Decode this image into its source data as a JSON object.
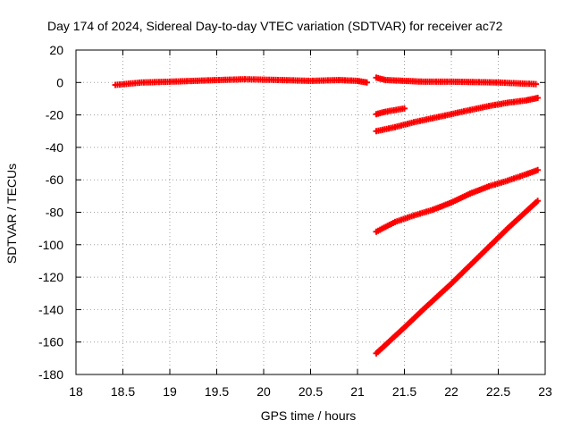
{
  "chart_data": {
    "type": "scatter",
    "title": "Day 174 of 2024, Sidereal Day-to-day VTEC variation (SDTVAR) for receiver ac72",
    "xlabel": "GPS time / hours",
    "ylabel": "SDTVAR / TECUs",
    "xlim": [
      18,
      23
    ],
    "ylim": [
      -180,
      20
    ],
    "xticks": [
      "18",
      "18.5",
      "19",
      "19.5",
      "20",
      "20.5",
      "21",
      "21.5",
      "22",
      "22.5",
      "23"
    ],
    "yticks": [
      "20",
      "0",
      "-20",
      "-40",
      "-60",
      "-80",
      "-100",
      "-120",
      "-140",
      "-160",
      "-180"
    ],
    "grid": true,
    "legend": "none",
    "marker": "plus",
    "color": "#ff0000",
    "series": [
      {
        "values": [
          [
            18.42,
            -1.5
          ],
          [
            18.7,
            0
          ],
          [
            19.0,
            0.5
          ],
          [
            19.5,
            1.5
          ],
          [
            19.8,
            2
          ],
          [
            20.2,
            1.5
          ],
          [
            20.5,
            1
          ],
          [
            20.8,
            1.5
          ],
          [
            21.0,
            1
          ],
          [
            21.1,
            0
          ]
        ]
      },
      {
        "values": [
          [
            21.2,
            3
          ],
          [
            21.3,
            1.5
          ],
          [
            21.5,
            1
          ],
          [
            21.7,
            0.5
          ],
          [
            22.0,
            0.5
          ],
          [
            22.5,
            0
          ],
          [
            22.9,
            -1
          ]
        ]
      },
      {
        "values": [
          [
            21.2,
            -19.5
          ],
          [
            21.3,
            -18
          ],
          [
            21.5,
            -16
          ]
        ]
      },
      {
        "values": [
          [
            21.2,
            -30
          ],
          [
            21.4,
            -27.5
          ],
          [
            21.6,
            -24.5
          ],
          [
            21.8,
            -22
          ],
          [
            22.0,
            -19.5
          ],
          [
            22.2,
            -17
          ],
          [
            22.4,
            -14.5
          ],
          [
            22.6,
            -12.5
          ],
          [
            22.8,
            -11
          ],
          [
            22.92,
            -9.5
          ]
        ]
      },
      {
        "values": [
          [
            21.2,
            -92
          ],
          [
            21.4,
            -86
          ],
          [
            21.6,
            -82
          ],
          [
            21.8,
            -78.5
          ],
          [
            22.0,
            -74
          ],
          [
            22.2,
            -68.5
          ],
          [
            22.4,
            -64
          ],
          [
            22.6,
            -60.5
          ],
          [
            22.8,
            -56.5
          ],
          [
            22.92,
            -54
          ]
        ]
      },
      {
        "values": [
          [
            21.2,
            -167
          ],
          [
            21.5,
            -151
          ],
          [
            21.7,
            -140
          ],
          [
            22.0,
            -124
          ],
          [
            22.3,
            -107
          ],
          [
            22.6,
            -90
          ],
          [
            22.92,
            -73
          ]
        ]
      }
    ]
  }
}
